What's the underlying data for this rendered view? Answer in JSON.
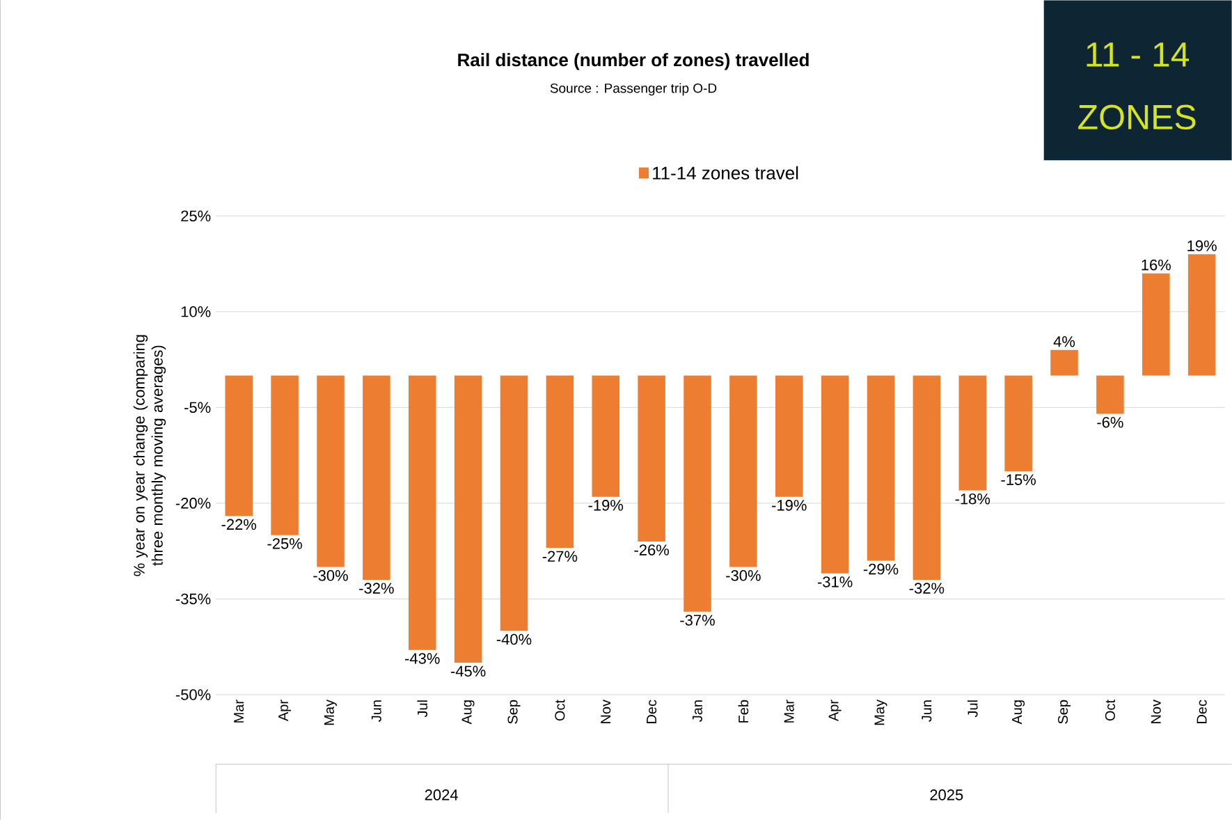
{
  "chart_data": {
    "type": "bar",
    "title": "Rail distance (number of zones) travelled",
    "subtitle": "Source : Passenger trip O-D",
    "ylabel": "% year on year change (comparing three monthly moving averages)",
    "categories": [
      "Mar",
      "Apr",
      "May",
      "Jun",
      "Jul",
      "Aug",
      "Sep",
      "Oct",
      "Nov",
      "Dec",
      "Jan",
      "Feb",
      "Mar",
      "Apr",
      "May",
      "Jun",
      "Jul",
      "Aug",
      "Sep",
      "Oct",
      "Nov",
      "Dec"
    ],
    "series": [
      {
        "name": "11-14 zones travel",
        "color": "#ed7d31",
        "values": [
          -22,
          -25,
          -30,
          -32,
          -43,
          -45,
          -40,
          -27,
          -19,
          -26,
          -37,
          -30,
          -19,
          -31,
          -29,
          -32,
          -18,
          -15,
          4,
          -6,
          16,
          19
        ],
        "value_labels": [
          "-22%",
          "-25%",
          "-30%",
          "-32%",
          "-43%",
          "-45%",
          "-40%",
          "-27%",
          "-19%",
          "-26%",
          "-37%",
          "-30%",
          "-19%",
          "-31%",
          "-29%",
          "-32%",
          "-18%",
          "-15%",
          "4%",
          "-6%",
          "16%",
          "19%"
        ]
      }
    ],
    "ylim": [
      -50,
      25
    ],
    "yticks": [
      {
        "value": -50,
        "label": "-50%"
      },
      {
        "value": -35,
        "label": "-35%"
      },
      {
        "value": -20,
        "label": "-20%"
      },
      {
        "value": -5,
        "label": "-5%"
      },
      {
        "value": 10,
        "label": "10%"
      },
      {
        "value": 25,
        "label": "25%"
      }
    ],
    "grid": "y",
    "legend": "top",
    "annotations": [
      "2024",
      "2025",
      "11 - 14",
      "ZONES"
    ]
  }
}
